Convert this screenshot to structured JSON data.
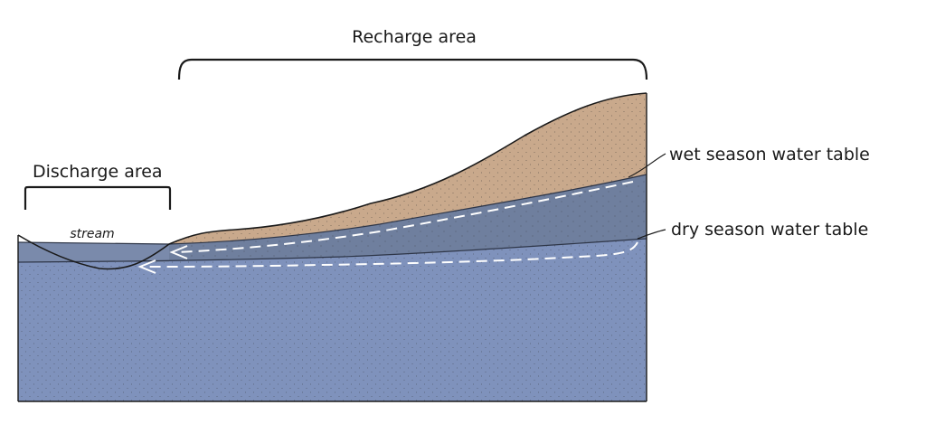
{
  "diagram": {
    "labels": {
      "recharge": "Recharge area",
      "discharge": "Discharge area",
      "stream": "stream",
      "wet_table": "wet season water table",
      "dry_table": "dry season water table"
    },
    "colors": {
      "sand": "#c9a98c",
      "saturated_wet": "#6f7f9e",
      "saturated_deep": "#7f92bc",
      "stream_water": "#7a8aab",
      "outline": "#1a1a1a",
      "flow_arrow": "#ffffff"
    }
  }
}
